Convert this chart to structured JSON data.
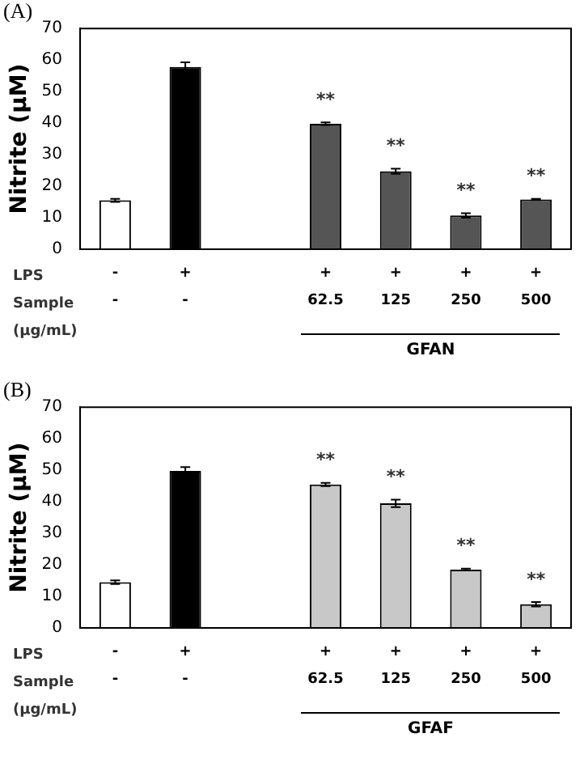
{
  "chart_data": [
    {
      "type": "bar",
      "title": "(A)",
      "ylabel": "Nitrite (μM)",
      "categories": [
        "-\n-",
        "+\n-",
        null,
        "+\n62.5",
        "+\n125",
        "+\n250",
        "+\n500"
      ],
      "values": [
        15.5,
        57.8,
        null,
        39.8,
        24.7,
        10.7,
        15.8
      ],
      "errors": [
        0.5,
        1.5,
        null,
        0.4,
        0.8,
        0.7,
        0.2
      ],
      "colors": [
        "#ffffff",
        "#000000",
        null,
        "#555555",
        "#555555",
        "#555555",
        "#555555"
      ],
      "ylim": [
        0,
        70
      ],
      "yticks": [
        0,
        10,
        20,
        30,
        40,
        50,
        60,
        70
      ],
      "grid": false,
      "legend": false,
      "annotations": [
        "LPS",
        "Sample\n(μg/mL)",
        "GFAN",
        {
          "text": "**",
          "x": "+\n62.5",
          "y": 39.8
        },
        {
          "text": "**",
          "x": "+\n125",
          "y": 24.7
        },
        {
          "text": "**",
          "x": "+\n250",
          "y": 10.7
        },
        {
          "text": "**",
          "x": "+\n500",
          "y": 15.8
        }
      ]
    },
    {
      "type": "bar",
      "title": "(B)",
      "ylabel": "Nitrite (μM)",
      "categories": [
        "-\n-",
        "+\n-",
        null,
        "+\n62.5",
        "+\n125",
        "+\n250",
        "+\n500"
      ],
      "values": [
        14.5,
        49.8,
        null,
        45.5,
        39.5,
        18.5,
        7.5
      ],
      "errors": [
        0.6,
        1.2,
        null,
        0.5,
        1.2,
        0.3,
        0.7
      ],
      "colors": [
        "#ffffff",
        "#000000",
        null,
        "#c8c8c8",
        "#c8c8c8",
        "#c8c8c8",
        "#c8c8c8"
      ],
      "ylim": [
        0,
        70
      ],
      "yticks": [
        0,
        10,
        20,
        30,
        40,
        50,
        60,
        70
      ],
      "grid": false,
      "legend": false,
      "annotations": [
        "LPS",
        "Sample\n(μg/mL)",
        "GFAF",
        {
          "text": "**",
          "x": "+\n62.5",
          "y": 45.5
        },
        {
          "text": "**",
          "x": "+\n125",
          "y": 39.5
        },
        {
          "text": "**",
          "x": "+\n250",
          "y": 18.5
        },
        {
          "text": "**",
          "x": "+\n500",
          "y": 7.5
        }
      ]
    }
  ]
}
